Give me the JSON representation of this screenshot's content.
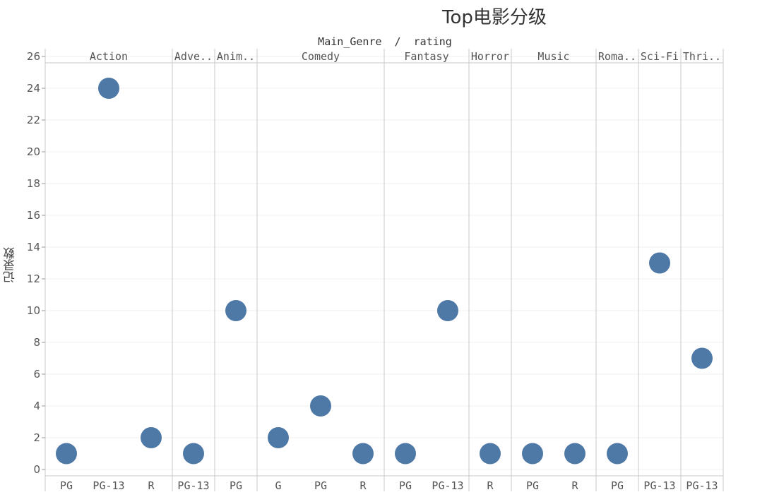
{
  "title": "Top电影分级",
  "header": "Main_Genre  /  rating",
  "ylabel": "记录数",
  "marker_color": "#4e79a7",
  "chart_data": {
    "type": "scatter",
    "title": "Top电影分级",
    "xlabel": "Main_Genre / rating",
    "ylabel": "记录数",
    "ylim": [
      0,
      26
    ],
    "yticks": [
      0,
      2,
      4,
      6,
      8,
      10,
      12,
      14,
      16,
      18,
      20,
      22,
      24,
      26
    ],
    "grid": true,
    "panels": [
      {
        "genre": "Action",
        "ratings": [
          "PG",
          "PG-13",
          "R"
        ],
        "values": [
          1,
          24,
          2
        ]
      },
      {
        "genre": "Adve..",
        "ratings": [
          "PG-13"
        ],
        "values": [
          1
        ]
      },
      {
        "genre": "Anim..",
        "ratings": [
          "PG"
        ],
        "values": [
          10
        ]
      },
      {
        "genre": "Comedy",
        "ratings": [
          "G",
          "PG",
          "R"
        ],
        "values": [
          2,
          4,
          1
        ]
      },
      {
        "genre": "Fantasy",
        "ratings": [
          "PG",
          "PG-13"
        ],
        "values": [
          1,
          10
        ]
      },
      {
        "genre": "Horror",
        "ratings": [
          "R"
        ],
        "values": [
          1
        ]
      },
      {
        "genre": "Music",
        "ratings": [
          "PG",
          "R"
        ],
        "values": [
          1,
          1
        ]
      },
      {
        "genre": "Roma..",
        "ratings": [
          "PG"
        ],
        "values": [
          1
        ]
      },
      {
        "genre": "Sci-Fi",
        "ratings": [
          "PG-13"
        ],
        "values": [
          13
        ]
      },
      {
        "genre": "Thri..",
        "ratings": [
          "PG-13"
        ],
        "values": [
          7
        ]
      }
    ]
  }
}
